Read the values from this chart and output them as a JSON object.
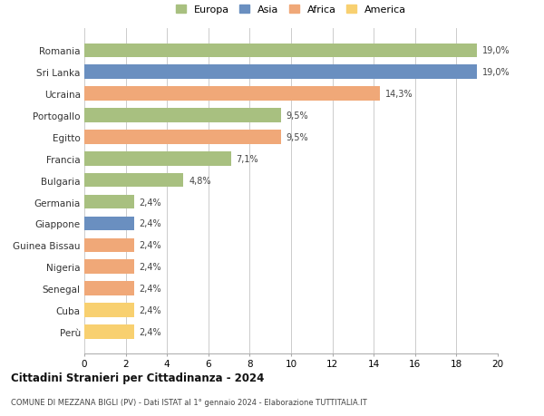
{
  "countries": [
    "Romania",
    "Sri Lanka",
    "Ucraina",
    "Portogallo",
    "Egitto",
    "Francia",
    "Bulgaria",
    "Germania",
    "Giappone",
    "Guinea Bissau",
    "Nigeria",
    "Senegal",
    "Cuba",
    "Perù"
  ],
  "values": [
    19.0,
    19.0,
    14.3,
    9.5,
    9.5,
    7.1,
    4.8,
    2.4,
    2.4,
    2.4,
    2.4,
    2.4,
    2.4,
    2.4
  ],
  "labels": [
    "19,0%",
    "19,0%",
    "14,3%",
    "9,5%",
    "9,5%",
    "7,1%",
    "4,8%",
    "2,4%",
    "2,4%",
    "2,4%",
    "2,4%",
    "2,4%",
    "2,4%",
    "2,4%"
  ],
  "colors": [
    "#a8c080",
    "#6a8fc0",
    "#f0a878",
    "#a8c080",
    "#f0a878",
    "#a8c080",
    "#a8c080",
    "#a8c080",
    "#6a8fc0",
    "#f0a878",
    "#f0a878",
    "#f0a878",
    "#f8d070",
    "#f8d070"
  ],
  "continent_labels": [
    "Europa",
    "Asia",
    "Africa",
    "America"
  ],
  "continent_colors": [
    "#a8c080",
    "#6a8fc0",
    "#f0a878",
    "#f8d070"
  ],
  "xlim": [
    0,
    20
  ],
  "xticks": [
    0,
    2,
    4,
    6,
    8,
    10,
    12,
    14,
    16,
    18,
    20
  ],
  "title1": "Cittadini Stranieri per Cittadinanza - 2024",
  "title2": "COMUNE DI MEZZANA BIGLI (PV) - Dati ISTAT al 1° gennaio 2024 - Elaborazione TUTTITALIA.IT",
  "bg_color": "#ffffff",
  "grid_color": "#cccccc"
}
